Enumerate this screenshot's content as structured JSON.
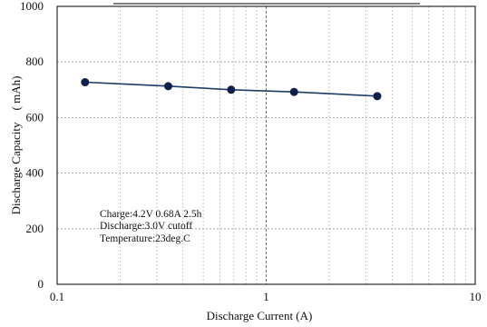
{
  "chart_data": {
    "type": "line",
    "title": "",
    "xlabel": "Discharge Current (A)",
    "ylabel": "Discharge Capacity　( mAh)",
    "x_scale": "log",
    "xlim": [
      0.1,
      10
    ],
    "ylim": [
      0,
      1000
    ],
    "x_ticks": [
      0.1,
      1,
      10
    ],
    "x_tick_labels": [
      "0.1",
      "1",
      "10"
    ],
    "y_ticks": [
      0,
      200,
      400,
      600,
      800,
      1000
    ],
    "y_tick_labels": [
      "0",
      "200",
      "400",
      "600",
      "800",
      "1000"
    ],
    "grid": true,
    "legend": "none",
    "series": [
      {
        "x": [
          0.136,
          0.34,
          0.68,
          1.36,
          3.4
        ],
        "y": [
          727,
          713,
          700,
          692,
          677
        ],
        "color": "#1f3d6b"
      }
    ],
    "annotations": [
      "Charge:4.2V 0.68A 2.5h",
      "Discharge:3.0V cutoff",
      "Temperature:23deg.C"
    ]
  }
}
